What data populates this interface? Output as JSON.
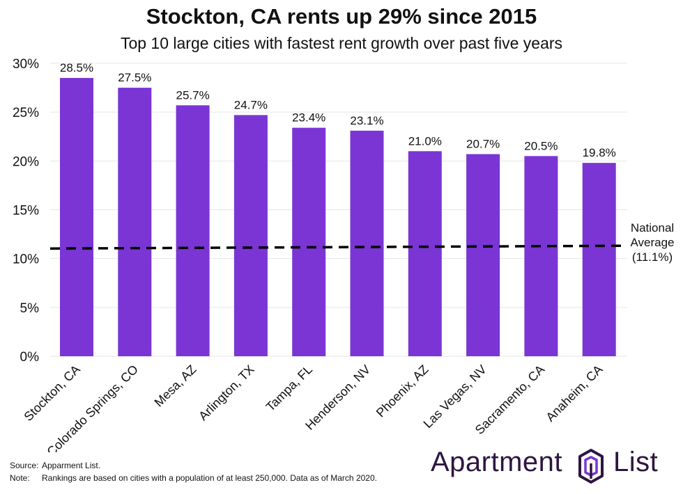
{
  "title": "Stockton, CA rents up 29% since 2015",
  "subtitle": "Top 10 large cities with fastest rent growth over past five years",
  "chart_data": {
    "type": "bar",
    "categories": [
      "Stockton, CA",
      "Colorado Springs, CO",
      "Mesa, AZ",
      "Arlington, TX",
      "Tampa, FL",
      "Henderson, NV",
      "Phoenix, AZ",
      "Las Vegas, NV",
      "Sacramento, CA",
      "Anaheim, CA"
    ],
    "values": [
      28.5,
      27.5,
      25.7,
      24.7,
      23.4,
      23.1,
      21.0,
      20.7,
      20.5,
      19.8
    ],
    "data_labels": [
      "28.5%",
      "27.5%",
      "25.7%",
      "24.7%",
      "23.4%",
      "23.1%",
      "21.0%",
      "20.7%",
      "20.5%",
      "19.8%"
    ],
    "y_ticks": [
      0,
      5,
      10,
      15,
      20,
      25,
      30
    ],
    "y_tick_labels": [
      "0%",
      "5%",
      "10%",
      "15%",
      "20%",
      "25%",
      "30%"
    ],
    "ylim": [
      0,
      30
    ],
    "grid": true,
    "bar_color": "#7b35d4",
    "reference_line": {
      "value": 11.1,
      "label_lines": [
        "National",
        "Average",
        "(11.1%)"
      ],
      "style": "dashed",
      "color": "#000000"
    }
  },
  "footer": {
    "source_label": "Source:",
    "source_text": "Apparment List.",
    "note_label": "Note:",
    "note_text": "Rankings are based on cities with a population of at least 250,000. Data as of March 2020."
  },
  "logo": {
    "word1": "Apartment",
    "word2": "List",
    "color": "#2d1540",
    "accent": "#7b35d4"
  }
}
